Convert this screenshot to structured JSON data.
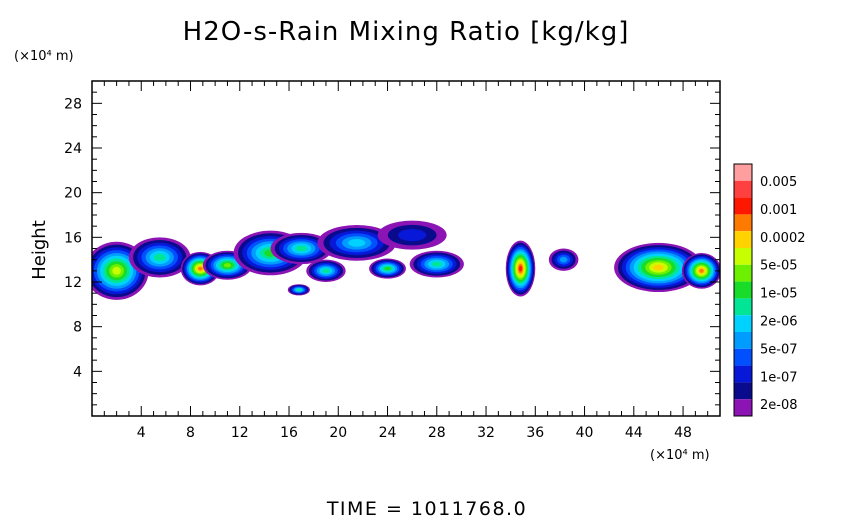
{
  "chart_data": {
    "type": "heatmap",
    "title": "H2O-s-Rain Mixing Ratio [kg/kg]",
    "ylabel": "Height",
    "y_unit": "(×10⁴ m)",
    "x_unit": "(×10⁴ m)",
    "xlim": [
      0,
      51
    ],
    "ylim": [
      0,
      30
    ],
    "x_ticks": [
      "4",
      "8",
      "12",
      "16",
      "20",
      "24",
      "28",
      "32",
      "36",
      "40",
      "44",
      "48"
    ],
    "y_ticks": [
      "4",
      "8",
      "12",
      "16",
      "20",
      "24",
      "28"
    ],
    "x_tick_values": [
      4,
      8,
      12,
      16,
      20,
      24,
      28,
      32,
      36,
      40,
      44,
      48
    ],
    "y_tick_values": [
      4,
      8,
      12,
      16,
      20,
      24,
      28
    ],
    "colorbar": {
      "labels": [
        "0.005",
        "0.001",
        "0.0002",
        "5e-05",
        "1e-05",
        "2e-06",
        "5e-07",
        "1e-07",
        "2e-08"
      ],
      "colors": [
        "#ff9e9e",
        "#ff4040",
        "#ff1800",
        "#ff7a00",
        "#ffd200",
        "#c8ff00",
        "#6cf000",
        "#18dc28",
        "#00e696",
        "#00d2ff",
        "#009cff",
        "#0050ff",
        "#0818d8",
        "#0a0a8c",
        "#8c14b4"
      ]
    },
    "clouds": [
      {
        "xc": 2.0,
        "yc": 13.0,
        "rx": 2.6,
        "ry": 2.6,
        "level": 9
      },
      {
        "xc": 5.5,
        "yc": 14.2,
        "rx": 2.5,
        "ry": 1.8,
        "level": 6
      },
      {
        "xc": 8.8,
        "yc": 13.2,
        "rx": 1.6,
        "ry": 1.5,
        "level": 11
      },
      {
        "xc": 11.0,
        "yc": 13.5,
        "rx": 2.0,
        "ry": 1.3,
        "level": 8
      },
      {
        "xc": 14.5,
        "yc": 14.6,
        "rx": 3.0,
        "ry": 2.0,
        "level": 7
      },
      {
        "xc": 17.0,
        "yc": 15.0,
        "rx": 2.5,
        "ry": 1.4,
        "level": 6
      },
      {
        "xc": 19.0,
        "yc": 13.0,
        "rx": 1.6,
        "ry": 1.0,
        "level": 6
      },
      {
        "xc": 21.5,
        "yc": 15.5,
        "rx": 3.2,
        "ry": 1.6,
        "level": 5
      },
      {
        "xc": 24.0,
        "yc": 13.2,
        "rx": 1.5,
        "ry": 0.9,
        "level": 7
      },
      {
        "xc": 26.0,
        "yc": 16.2,
        "rx": 2.8,
        "ry": 1.3,
        "level": 2
      },
      {
        "xc": 28.0,
        "yc": 13.6,
        "rx": 2.2,
        "ry": 1.2,
        "level": 6
      },
      {
        "xc": 16.8,
        "yc": 11.3,
        "rx": 0.9,
        "ry": 0.5,
        "level": 6
      },
      {
        "xc": 34.8,
        "yc": 13.2,
        "rx": 1.2,
        "ry": 2.5,
        "level": 12
      },
      {
        "xc": 38.3,
        "yc": 14.0,
        "rx": 1.2,
        "ry": 1.0,
        "level": 4
      },
      {
        "xc": 46.0,
        "yc": 13.3,
        "rx": 3.6,
        "ry": 2.2,
        "level": 10
      },
      {
        "xc": 49.5,
        "yc": 13.0,
        "rx": 1.6,
        "ry": 1.6,
        "level": 11
      }
    ]
  },
  "footer": {
    "time_text": "TIME = 1011768.0"
  }
}
